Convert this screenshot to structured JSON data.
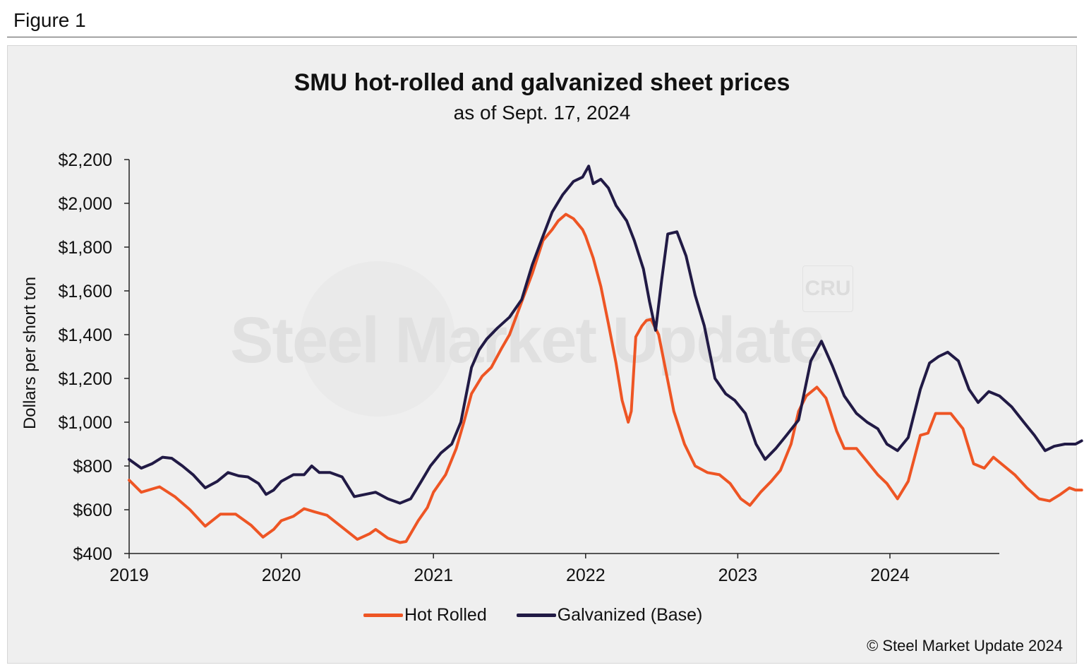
{
  "figure_label": "Figure 1",
  "watermark": {
    "text": "Steel Market Update",
    "logo_text": "CRU"
  },
  "copyright": "© Steel Market Update 2024",
  "colors": {
    "hot_rolled": "#ee5524",
    "galvanized": "#211a45",
    "panel": "#efefef"
  },
  "chart_data": {
    "type": "line",
    "title": "SMU hot-rolled and galvanized sheet prices",
    "subtitle": "as of Sept. 17, 2024",
    "xlabel": "",
    "ylabel": "Dollars per short ton",
    "xlim": [
      2019.0,
      2024.72
    ],
    "ylim": [
      400,
      2200
    ],
    "x_ticks": [
      2019,
      2020,
      2021,
      2022,
      2023,
      2024
    ],
    "x_tick_labels": [
      "2019",
      "2020",
      "2021",
      "2022",
      "2023",
      "2024"
    ],
    "y_ticks": [
      400,
      600,
      800,
      1000,
      1200,
      1400,
      1600,
      1800,
      2000,
      2200
    ],
    "y_tick_labels": [
      "$400",
      "$600",
      "$800",
      "$1,000",
      "$1,200",
      "$1,400",
      "$1,600",
      "$1,800",
      "$2,000",
      "$2,200"
    ],
    "grid": false,
    "legend_position": "bottom-center",
    "series": [
      {
        "name": "Hot Rolled",
        "color": "#ee5524",
        "points": [
          [
            2019.0,
            735
          ],
          [
            2019.08,
            680
          ],
          [
            2019.2,
            705
          ],
          [
            2019.3,
            660
          ],
          [
            2019.4,
            600
          ],
          [
            2019.5,
            525
          ],
          [
            2019.6,
            580
          ],
          [
            2019.7,
            580
          ],
          [
            2019.8,
            530
          ],
          [
            2019.88,
            475
          ],
          [
            2019.95,
            510
          ],
          [
            2020.0,
            550
          ],
          [
            2020.08,
            570
          ],
          [
            2020.15,
            605
          ],
          [
            2020.22,
            590
          ],
          [
            2020.3,
            575
          ],
          [
            2020.4,
            520
          ],
          [
            2020.5,
            465
          ],
          [
            2020.58,
            490
          ],
          [
            2020.62,
            510
          ],
          [
            2020.7,
            470
          ],
          [
            2020.78,
            450
          ],
          [
            2020.82,
            455
          ],
          [
            2020.9,
            550
          ],
          [
            2020.96,
            610
          ],
          [
            2021.0,
            680
          ],
          [
            2021.08,
            760
          ],
          [
            2021.15,
            880
          ],
          [
            2021.2,
            1000
          ],
          [
            2021.25,
            1130
          ],
          [
            2021.32,
            1210
          ],
          [
            2021.38,
            1250
          ],
          [
            2021.45,
            1340
          ],
          [
            2021.5,
            1400
          ],
          [
            2021.58,
            1550
          ],
          [
            2021.65,
            1680
          ],
          [
            2021.72,
            1830
          ],
          [
            2021.78,
            1880
          ],
          [
            2021.82,
            1920
          ],
          [
            2021.87,
            1950
          ],
          [
            2021.92,
            1930
          ],
          [
            2021.98,
            1880
          ],
          [
            2022.0,
            1850
          ],
          [
            2022.05,
            1750
          ],
          [
            2022.1,
            1620
          ],
          [
            2022.15,
            1450
          ],
          [
            2022.2,
            1270
          ],
          [
            2022.24,
            1100
          ],
          [
            2022.28,
            1000
          ],
          [
            2022.3,
            1050
          ],
          [
            2022.33,
            1390
          ],
          [
            2022.37,
            1440
          ],
          [
            2022.4,
            1465
          ],
          [
            2022.43,
            1470
          ],
          [
            2022.48,
            1400
          ],
          [
            2022.52,
            1260
          ],
          [
            2022.58,
            1050
          ],
          [
            2022.65,
            900
          ],
          [
            2022.72,
            800
          ],
          [
            2022.8,
            770
          ],
          [
            2022.88,
            760
          ],
          [
            2022.95,
            720
          ],
          [
            2023.02,
            650
          ],
          [
            2023.08,
            620
          ],
          [
            2023.15,
            680
          ],
          [
            2023.22,
            730
          ],
          [
            2023.28,
            780
          ],
          [
            2023.35,
            900
          ],
          [
            2023.4,
            1050
          ],
          [
            2023.45,
            1120
          ],
          [
            2023.52,
            1160
          ],
          [
            2023.58,
            1110
          ],
          [
            2023.65,
            960
          ],
          [
            2023.7,
            880
          ],
          [
            2023.78,
            880
          ],
          [
            2023.85,
            820
          ],
          [
            2023.92,
            760
          ],
          [
            2023.98,
            720
          ],
          [
            2024.05,
            650
          ],
          [
            2024.12,
            730
          ],
          [
            2024.2,
            940
          ],
          [
            2024.25,
            950
          ],
          [
            2024.3,
            1040
          ],
          [
            2024.4,
            1040
          ],
          [
            2024.48,
            970
          ],
          [
            2024.55,
            810
          ],
          [
            2024.62,
            790
          ],
          [
            2024.68,
            840
          ],
          [
            2024.75,
            800
          ],
          [
            2024.82,
            760
          ],
          [
            2024.9,
            700
          ],
          [
            2024.98,
            650
          ],
          [
            2025.05,
            640
          ],
          [
            2025.12,
            670
          ],
          [
            2025.18,
            700
          ],
          [
            2025.22,
            690
          ],
          [
            2025.26,
            690
          ]
        ]
      },
      {
        "name": "Galvanized (Base)",
        "color": "#211a45",
        "points": [
          [
            2019.0,
            830
          ],
          [
            2019.08,
            790
          ],
          [
            2019.15,
            810
          ],
          [
            2019.22,
            840
          ],
          [
            2019.28,
            835
          ],
          [
            2019.35,
            800
          ],
          [
            2019.42,
            760
          ],
          [
            2019.5,
            700
          ],
          [
            2019.58,
            730
          ],
          [
            2019.65,
            770
          ],
          [
            2019.72,
            755
          ],
          [
            2019.78,
            750
          ],
          [
            2019.85,
            720
          ],
          [
            2019.9,
            670
          ],
          [
            2019.95,
            690
          ],
          [
            2020.0,
            730
          ],
          [
            2020.08,
            760
          ],
          [
            2020.15,
            760
          ],
          [
            2020.2,
            800
          ],
          [
            2020.25,
            770
          ],
          [
            2020.32,
            770
          ],
          [
            2020.4,
            750
          ],
          [
            2020.48,
            660
          ],
          [
            2020.55,
            670
          ],
          [
            2020.62,
            680
          ],
          [
            2020.7,
            650
          ],
          [
            2020.78,
            630
          ],
          [
            2020.85,
            650
          ],
          [
            2020.92,
            730
          ],
          [
            2020.98,
            800
          ],
          [
            2021.05,
            860
          ],
          [
            2021.12,
            900
          ],
          [
            2021.18,
            1000
          ],
          [
            2021.25,
            1250
          ],
          [
            2021.3,
            1330
          ],
          [
            2021.35,
            1380
          ],
          [
            2021.42,
            1430
          ],
          [
            2021.5,
            1480
          ],
          [
            2021.58,
            1560
          ],
          [
            2021.65,
            1720
          ],
          [
            2021.72,
            1850
          ],
          [
            2021.78,
            1960
          ],
          [
            2021.85,
            2040
          ],
          [
            2021.92,
            2100
          ],
          [
            2021.98,
            2120
          ],
          [
            2022.02,
            2170
          ],
          [
            2022.05,
            2090
          ],
          [
            2022.1,
            2110
          ],
          [
            2022.15,
            2070
          ],
          [
            2022.2,
            1990
          ],
          [
            2022.27,
            1920
          ],
          [
            2022.32,
            1830
          ],
          [
            2022.38,
            1700
          ],
          [
            2022.42,
            1550
          ],
          [
            2022.46,
            1420
          ],
          [
            2022.5,
            1650
          ],
          [
            2022.54,
            1860
          ],
          [
            2022.6,
            1870
          ],
          [
            2022.66,
            1760
          ],
          [
            2022.72,
            1580
          ],
          [
            2022.78,
            1440
          ],
          [
            2022.85,
            1200
          ],
          [
            2022.92,
            1130
          ],
          [
            2022.98,
            1100
          ],
          [
            2023.05,
            1040
          ],
          [
            2023.12,
            900
          ],
          [
            2023.18,
            830
          ],
          [
            2023.25,
            880
          ],
          [
            2023.32,
            940
          ],
          [
            2023.4,
            1010
          ],
          [
            2023.48,
            1280
          ],
          [
            2023.55,
            1370
          ],
          [
            2023.62,
            1260
          ],
          [
            2023.7,
            1120
          ],
          [
            2023.78,
            1040
          ],
          [
            2023.85,
            1000
          ],
          [
            2023.92,
            970
          ],
          [
            2023.98,
            900
          ],
          [
            2024.05,
            870
          ],
          [
            2024.12,
            930
          ],
          [
            2024.2,
            1150
          ],
          [
            2024.26,
            1270
          ],
          [
            2024.32,
            1300
          ],
          [
            2024.38,
            1320
          ],
          [
            2024.45,
            1280
          ],
          [
            2024.52,
            1150
          ],
          [
            2024.58,
            1090
          ],
          [
            2024.65,
            1140
          ],
          [
            2024.72,
            1120
          ],
          [
            2024.8,
            1070
          ],
          [
            2024.88,
            1000
          ],
          [
            2024.95,
            940
          ],
          [
            2025.02,
            870
          ],
          [
            2025.08,
            890
          ],
          [
            2025.15,
            900
          ],
          [
            2025.22,
            900
          ],
          [
            2025.26,
            915
          ]
        ]
      }
    ]
  }
}
